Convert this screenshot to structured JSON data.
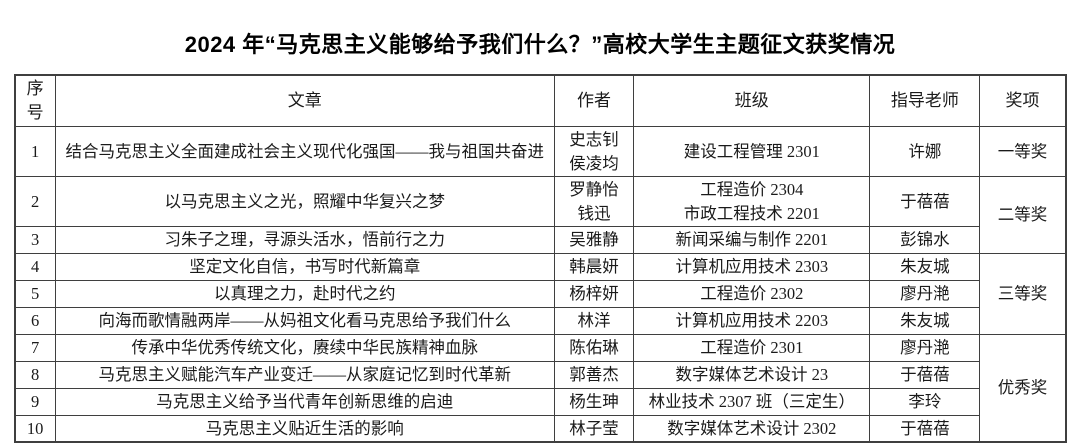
{
  "title": "2024 年“马克思主义能够给予我们什么？”高校大学生主题征文获奖情况",
  "table": {
    "headers": [
      "序号",
      "文章",
      "作者",
      "班级",
      "指导老师",
      "奖项"
    ],
    "rows": [
      {
        "no": "1",
        "article": "结合马克思主义全面建成社会主义现代化强国——我与祖国共奋进",
        "author": "史志钊\n侯凌均",
        "class": "建设工程管理 2301",
        "teacher": "许娜"
      },
      {
        "no": "2",
        "article": "以马克思主义之光，照耀中华复兴之梦",
        "author": "罗静怡\n钱迅",
        "class": "工程造价 2304\n市政工程技术 2201",
        "teacher": "于蓓蓓"
      },
      {
        "no": "3",
        "article": "习朱子之理，寻源头活水，悟前行之力",
        "author": "吴雅静",
        "class": "新闻采编与制作 2201",
        "teacher": "彭锦水"
      },
      {
        "no": "4",
        "article": "坚定文化自信，书写时代新篇章",
        "author": "韩晨妍",
        "class": "计算机应用技术 2303",
        "teacher": "朱友城"
      },
      {
        "no": "5",
        "article": "以真理之力，赴时代之约",
        "author": "杨梓妍",
        "class": "工程造价 2302",
        "teacher": "廖丹滟"
      },
      {
        "no": "6",
        "article": "向海而歌情融两岸——从妈祖文化看马克思给予我们什么",
        "author": "林洋",
        "class": "计算机应用技术 2203",
        "teacher": "朱友城"
      },
      {
        "no": "7",
        "article": "传承中华优秀传统文化，赓续中华民族精神血脉",
        "author": "陈佑琳",
        "class": "工程造价 2301",
        "teacher": "廖丹滟"
      },
      {
        "no": "8",
        "article": "马克思主义赋能汽车产业变迁——从家庭记忆到时代革新",
        "author": "郭善杰",
        "class": "数字媒体艺术设计 23",
        "teacher": "于蓓蓓"
      },
      {
        "no": "9",
        "article": "马克思主义给予当代青年创新思维的启迪",
        "author": "杨生珅",
        "class": "林业技术 2307 班（三定生）",
        "teacher": "李玲"
      },
      {
        "no": "10",
        "article": "马克思主义贴近生活的影响",
        "author": "林子莹",
        "class": "数字媒体艺术设计 2302",
        "teacher": "于蓓蓓"
      }
    ],
    "awards": [
      {
        "label": "一等奖",
        "row_span": 1
      },
      {
        "label": "二等奖",
        "row_span": 2
      },
      {
        "label": "三等奖",
        "row_span": 3
      },
      {
        "label": "优秀奖",
        "row_span": 4
      }
    ]
  }
}
